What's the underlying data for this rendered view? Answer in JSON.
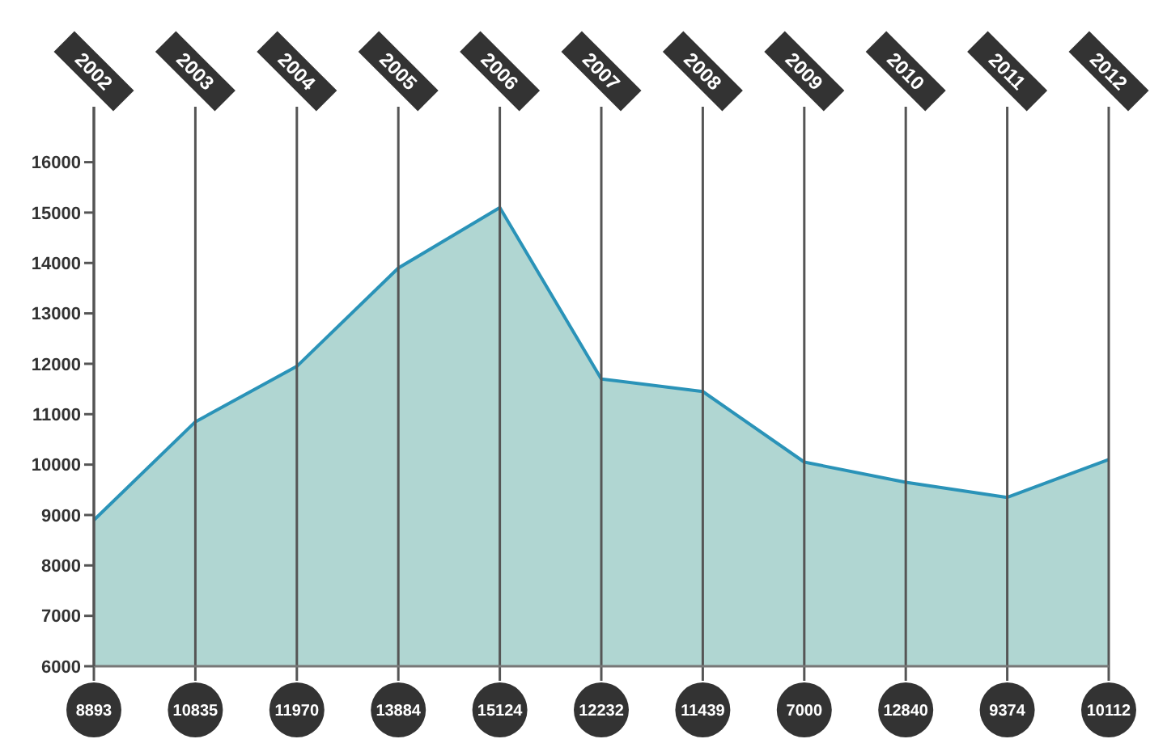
{
  "chart_data": {
    "type": "area",
    "categories": [
      "2002",
      "2003",
      "2004",
      "2005",
      "2006",
      "2007",
      "2008",
      "2009",
      "2010",
      "2011",
      "2012"
    ],
    "series": [
      {
        "color": "#2a93b8",
        "values": [
          8900,
          10850,
          11950,
          13900,
          15100,
          11700,
          11450,
          10050,
          9650,
          9350,
          10100
        ]
      }
    ],
    "value_labels": [
      "8893",
      "10835",
      "11970",
      "13884",
      "15124",
      "12232",
      "11439",
      "7000",
      "12840",
      "9374",
      "10112"
    ],
    "ylim": [
      6000,
      17100
    ],
    "yticks": [
      6000,
      7000,
      8000,
      9000,
      10000,
      11000,
      12000,
      13000,
      14000,
      15000,
      16000
    ],
    "grid": "x"
  }
}
